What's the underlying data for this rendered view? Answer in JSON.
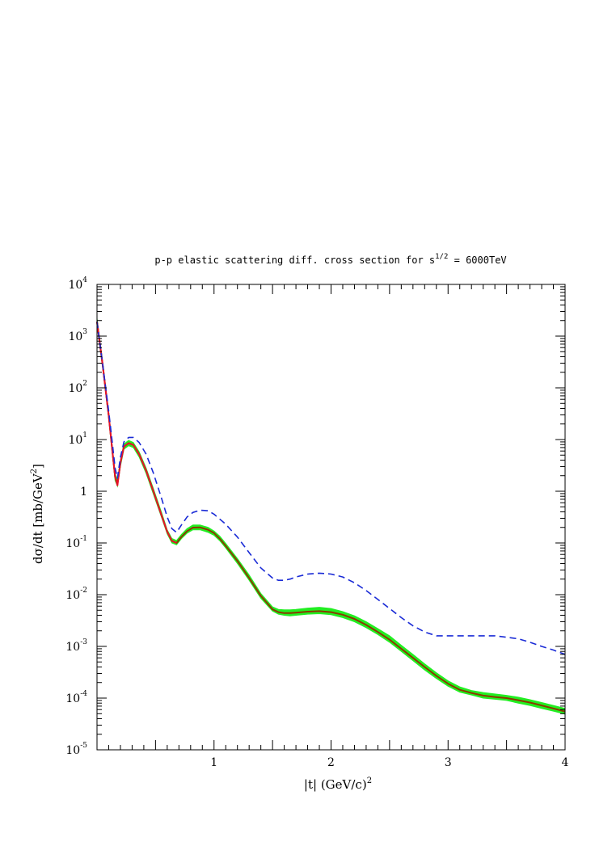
{
  "chart_data": {
    "type": "line",
    "title": "p-p elastic scattering diff. cross section for s",
    "title_sup": "1/2",
    "title_tail": " = 6000TeV",
    "xlabel": "|t|  (GeV/c)",
    "xlabel_sup": "2",
    "ylabel": "dσ/dt [mb/GeV",
    "ylabel_sup": "2",
    "ylabel_tail": "]",
    "xlim": [
      0,
      4
    ],
    "ylim": [
      1e-05,
      10000.0
    ],
    "yscale": "log",
    "grid": false,
    "x_ticks": [
      {
        "value": 1,
        "label": "1"
      },
      {
        "value": 2,
        "label": "2"
      },
      {
        "value": 3,
        "label": "3"
      },
      {
        "value": 4,
        "label": "4"
      }
    ],
    "y_ticks": [
      {
        "value": 10000,
        "base": "10",
        "exp": "4"
      },
      {
        "value": 1000,
        "base": "10",
        "exp": "3"
      },
      {
        "value": 100,
        "base": "10",
        "exp": "2"
      },
      {
        "value": 10,
        "base": "10",
        "exp": "1"
      },
      {
        "value": 1,
        "base": "1",
        "exp": ""
      },
      {
        "value": 0.1,
        "base": "10",
        "exp": "-1"
      },
      {
        "value": 0.01,
        "base": "10",
        "exp": "-2"
      },
      {
        "value": 0.001,
        "base": "10",
        "exp": "-3"
      },
      {
        "value": 0.0001,
        "base": "10",
        "exp": "-4"
      },
      {
        "value": 1e-05,
        "base": "10",
        "exp": "-5"
      }
    ],
    "series": [
      {
        "style": "band",
        "color": "#22ee22",
        "x": [
          0.0,
          0.05,
          0.1,
          0.13,
          0.155,
          0.175,
          0.2,
          0.23,
          0.27,
          0.31,
          0.36,
          0.42,
          0.48,
          0.55,
          0.6,
          0.64,
          0.68,
          0.72,
          0.77,
          0.82,
          0.88,
          0.95,
          1.0,
          1.05,
          1.1,
          1.2,
          1.3,
          1.4,
          1.5,
          1.55,
          1.6,
          1.65,
          1.7,
          1.8,
          1.9,
          2.0,
          2.1,
          2.2,
          2.3,
          2.4,
          2.5,
          2.6,
          2.7,
          2.8,
          2.9,
          3.0,
          3.1,
          3.2,
          3.3,
          3.4,
          3.5,
          3.6,
          3.7,
          3.8,
          3.9,
          4.0
        ],
        "y_low": [
          1700,
          230,
          25,
          5.5,
          1.6,
          1.25,
          3.0,
          6.5,
          7.6,
          7.0,
          4.6,
          2.2,
          0.9,
          0.32,
          0.15,
          0.1,
          0.092,
          0.12,
          0.155,
          0.18,
          0.18,
          0.16,
          0.14,
          0.11,
          0.08,
          0.04,
          0.019,
          0.0085,
          0.0048,
          0.0042,
          0.004,
          0.0039,
          0.004,
          0.0042,
          0.0043,
          0.0041,
          0.0036,
          0.003,
          0.0023,
          0.0017,
          0.0012,
          0.0008,
          0.00053,
          0.00035,
          0.00024,
          0.00017,
          0.00013,
          0.000115,
          0.0001,
          9.5e-05,
          9e-05,
          8e-05,
          7.2e-05,
          6.3e-05,
          5.6e-05,
          4.9e-05
        ],
        "y_high": [
          2200,
          300,
          33,
          7.5,
          2.2,
          1.65,
          4.0,
          8.2,
          9.6,
          8.8,
          5.8,
          2.8,
          1.15,
          0.4,
          0.18,
          0.122,
          0.112,
          0.145,
          0.19,
          0.222,
          0.222,
          0.2,
          0.17,
          0.135,
          0.098,
          0.05,
          0.024,
          0.0106,
          0.0058,
          0.0052,
          0.0051,
          0.0051,
          0.0052,
          0.0055,
          0.0057,
          0.0054,
          0.0047,
          0.0039,
          0.003,
          0.0022,
          0.0016,
          0.00105,
          0.0007,
          0.00046,
          0.00031,
          0.000215,
          0.000165,
          0.00014,
          0.000128,
          0.00012,
          0.000113,
          0.000104,
          9.3e-05,
          8.2e-05,
          7.2e-05,
          6.3e-05
        ]
      },
      {
        "style": "solid",
        "color": "#8a3a00",
        "x": [
          0.0,
          0.05,
          0.1,
          0.13,
          0.155,
          0.175,
          0.2,
          0.23,
          0.27,
          0.31,
          0.36,
          0.42,
          0.48,
          0.55,
          0.6,
          0.64,
          0.68,
          0.72,
          0.77,
          0.82,
          0.88,
          0.95,
          1.0,
          1.05,
          1.1,
          1.2,
          1.3,
          1.4,
          1.5,
          1.55,
          1.6,
          1.65,
          1.7,
          1.8,
          1.9,
          2.0,
          2.1,
          2.2,
          2.3,
          2.4,
          2.5,
          2.6,
          2.7,
          2.8,
          2.9,
          3.0,
          3.1,
          3.2,
          3.3,
          3.4,
          3.5,
          3.6,
          3.7,
          3.8,
          3.9,
          4.0
        ],
        "y": [
          1900,
          260,
          29,
          6.4,
          1.9,
          1.4,
          3.5,
          7.3,
          8.5,
          7.9,
          5.2,
          2.5,
          1.02,
          0.35,
          0.165,
          0.11,
          0.1,
          0.13,
          0.17,
          0.198,
          0.2,
          0.18,
          0.155,
          0.12,
          0.088,
          0.045,
          0.021,
          0.0095,
          0.0052,
          0.0046,
          0.0044,
          0.0044,
          0.0045,
          0.0047,
          0.0048,
          0.0046,
          0.0041,
          0.0034,
          0.0026,
          0.0019,
          0.00135,
          0.0009,
          0.0006,
          0.0004,
          0.00027,
          0.00019,
          0.000145,
          0.000126,
          0.000112,
          0.000105,
          0.0001,
          9.1e-05,
          8.2e-05,
          7.2e-05,
          6.3e-05,
          5.5e-05
        ]
      },
      {
        "style": "solid",
        "color": "#e8102a",
        "x": [
          0.0,
          0.05,
          0.1,
          0.13,
          0.155,
          0.175,
          0.2,
          0.23,
          0.27,
          0.31,
          0.36,
          0.42,
          0.48,
          0.55,
          0.6,
          0.64,
          0.68
        ],
        "y": [
          1900,
          260,
          29,
          6.4,
          1.9,
          1.3,
          3.5,
          7.3,
          8.5,
          7.9,
          5.2,
          2.5,
          1.02,
          0.35,
          0.165,
          0.11,
          0.1
        ]
      },
      {
        "style": "dashed",
        "color": "#1a2bd6",
        "x": [
          0.0,
          0.05,
          0.1,
          0.13,
          0.155,
          0.175,
          0.2,
          0.23,
          0.27,
          0.31,
          0.36,
          0.42,
          0.48,
          0.55,
          0.6,
          0.64,
          0.68,
          0.72,
          0.77,
          0.82,
          0.88,
          0.95,
          1.0,
          1.1,
          1.2,
          1.3,
          1.4,
          1.5,
          1.55,
          1.6,
          1.65,
          1.7,
          1.8,
          1.9,
          2.0,
          2.1,
          2.2,
          2.3,
          2.4,
          2.5,
          2.6,
          2.7,
          2.8,
          2.9,
          3.0,
          3.1,
          3.2,
          3.3,
          3.4,
          3.5,
          3.6,
          3.7,
          3.8,
          3.9,
          4.0
        ],
        "y": [
          1900,
          270,
          35,
          9.0,
          2.8,
          1.8,
          4.5,
          9.0,
          11.0,
          11.0,
          8.8,
          5.2,
          2.3,
          0.75,
          0.32,
          0.19,
          0.16,
          0.22,
          0.32,
          0.39,
          0.43,
          0.42,
          0.36,
          0.23,
          0.13,
          0.065,
          0.033,
          0.021,
          0.019,
          0.019,
          0.02,
          0.022,
          0.025,
          0.026,
          0.025,
          0.022,
          0.017,
          0.012,
          0.0081,
          0.0054,
          0.0036,
          0.0025,
          0.0019,
          0.0016,
          0.0016,
          0.0016,
          0.0016,
          0.0016,
          0.0016,
          0.0015,
          0.0014,
          0.0012,
          0.001,
          0.00085,
          0.0007
        ]
      }
    ]
  }
}
